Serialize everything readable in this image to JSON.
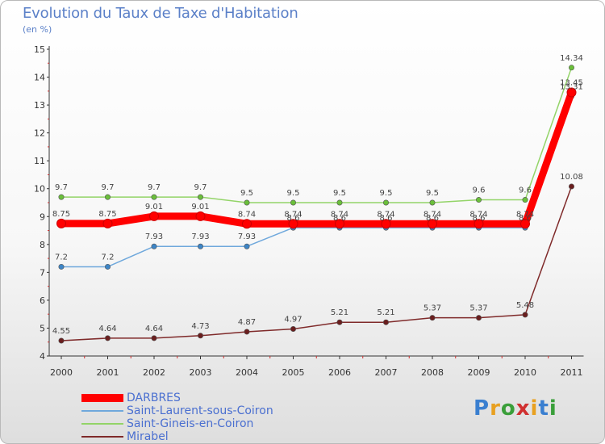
{
  "chart_data": {
    "type": "line",
    "title": "Evolution du Taux de Taxe d'Habitation",
    "subtitle": "(en %)",
    "x": [
      "2000",
      "2001",
      "2002",
      "2003",
      "2004",
      "2005",
      "2006",
      "2007",
      "2008",
      "2009",
      "2010",
      "2011"
    ],
    "ylim": [
      4,
      15
    ],
    "yticks": [
      4,
      5,
      6,
      7,
      8,
      9,
      10,
      11,
      12,
      13,
      14,
      15
    ],
    "grid": false,
    "legend_position": "bottom-left",
    "series": [
      {
        "name": "DARBRES",
        "color": "#ff0000",
        "marker": "#ff0000",
        "values": [
          8.75,
          8.75,
          9.01,
          9.01,
          8.74,
          8.74,
          8.74,
          8.74,
          8.74,
          8.74,
          8.74,
          13.45
        ],
        "labels": [
          "8.75",
          "8.75",
          "9.01",
          "9.01",
          "8.74",
          "8.74",
          "8.74",
          "8.74",
          "8.74",
          "8.74",
          "8.74",
          "13.45"
        ]
      },
      {
        "name": "Saint-Laurent-sous-Coiron",
        "color": "#6fa8dc",
        "marker": "#3d85c6",
        "values": [
          7.2,
          7.2,
          7.93,
          7.93,
          7.93,
          8.6,
          8.6,
          8.6,
          8.6,
          8.6,
          8.6,
          13.31
        ],
        "labels": [
          "7.2",
          "7.2",
          "7.93",
          "7.93",
          "7.93",
          "8.6",
          "8.6",
          "8.6",
          "8.6",
          "8.6",
          "8.6",
          "13.31"
        ]
      },
      {
        "name": "Saint-Gineis-en-Coiron",
        "color": "#93d468",
        "marker": "#6abf3a",
        "values": [
          9.7,
          9.7,
          9.7,
          9.7,
          9.5,
          9.5,
          9.5,
          9.5,
          9.5,
          9.6,
          9.6,
          14.34
        ],
        "labels": [
          "9.7",
          "9.7",
          "9.7",
          "9.7",
          "9.5",
          "9.5",
          "9.5",
          "9.5",
          "9.5",
          "9.6",
          "9.6",
          "14.34"
        ]
      },
      {
        "name": "Mirabel",
        "color": "#7f2a2a",
        "marker": "#6a1e1e",
        "values": [
          4.55,
          4.64,
          4.64,
          4.73,
          4.87,
          4.97,
          5.21,
          5.21,
          5.37,
          5.37,
          5.48,
          10.08
        ],
        "labels": [
          "4.55",
          "4.64",
          "4.64",
          "4.73",
          "4.87",
          "4.97",
          "5.21",
          "5.21",
          "5.37",
          "5.37",
          "5.48",
          "10.08"
        ]
      }
    ]
  },
  "logo": {
    "letters": [
      "P",
      "r",
      "o",
      "x",
      "i",
      "t",
      "i"
    ],
    "colors": [
      "#3a7fd0",
      "#e8a020",
      "#3a9f3a",
      "#d03030",
      "#e8a020",
      "#3a7fd0",
      "#3a9f3a"
    ]
  }
}
